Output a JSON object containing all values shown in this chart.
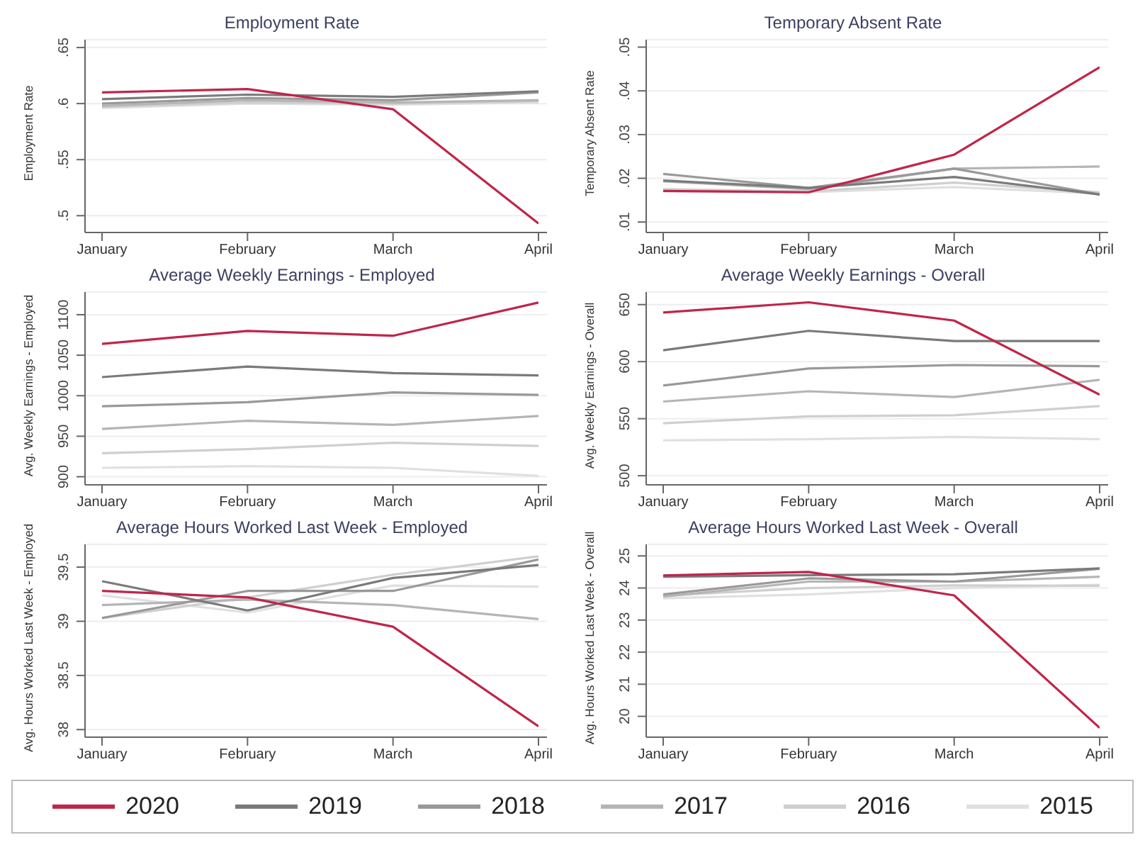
{
  "chart_data": [
    {
      "type": "line",
      "title": "Employment Rate",
      "ylabel": "Employment Rate",
      "categories": [
        "January",
        "February",
        "March",
        "April"
      ],
      "ylim": [
        0.485,
        0.657
      ],
      "yticks": [
        {
          "value": 0.5,
          "label": ".5"
        },
        {
          "value": 0.55,
          "label": ".55"
        },
        {
          "value": 0.6,
          "label": ".6"
        },
        {
          "value": 0.65,
          "label": ".65"
        }
      ],
      "grid": "y",
      "legend": "bottom",
      "series": [
        {
          "name": "2020",
          "color": "#c0254a",
          "values": [
            0.61,
            0.613,
            0.595,
            0.493
          ]
        },
        {
          "name": "2019",
          "color": "#7a7a7a",
          "values": [
            0.604,
            0.608,
            0.606,
            0.611
          ]
        },
        {
          "name": "2018",
          "color": "#999999",
          "values": [
            0.6,
            0.605,
            0.603,
            0.61
          ]
        },
        {
          "name": "2017",
          "color": "#b5b5b5",
          "values": [
            0.598,
            0.603,
            0.601,
            0.603
          ]
        },
        {
          "name": "2016",
          "color": "#cfcfcf",
          "values": [
            0.597,
            0.601,
            0.6,
            0.602
          ]
        },
        {
          "name": "2015",
          "color": "#e0e0e0",
          "values": [
            0.596,
            0.6,
            0.599,
            0.601
          ]
        }
      ]
    },
    {
      "type": "line",
      "title": "Temporary Absent Rate",
      "ylabel": "Temporary Absent Rate",
      "categories": [
        "January",
        "February",
        "March",
        "April"
      ],
      "ylim": [
        0.0076,
        0.0517
      ],
      "yticks": [
        {
          "value": 0.01,
          "label": ".01"
        },
        {
          "value": 0.02,
          "label": ".02"
        },
        {
          "value": 0.03,
          "label": ".03"
        },
        {
          "value": 0.04,
          "label": ".04"
        },
        {
          "value": 0.05,
          "label": ".05"
        }
      ],
      "grid": "y",
      "legend": "bottom",
      "series": [
        {
          "name": "2020",
          "color": "#c0254a",
          "values": [
            0.0171,
            0.0168,
            0.0254,
            0.0454
          ]
        },
        {
          "name": "2019",
          "color": "#7a7a7a",
          "values": [
            0.0195,
            0.0178,
            0.0203,
            0.0163
          ]
        },
        {
          "name": "2018",
          "color": "#999999",
          "values": [
            0.021,
            0.0178,
            0.0222,
            0.0163
          ]
        },
        {
          "name": "2017",
          "color": "#b5b5b5",
          "values": [
            0.0193,
            0.0175,
            0.0222,
            0.0227
          ]
        },
        {
          "name": "2016",
          "color": "#cfcfcf",
          "values": [
            0.0175,
            0.017,
            0.019,
            0.0168
          ]
        },
        {
          "name": "2015",
          "color": "#e0e0e0",
          "values": [
            0.017,
            0.0168,
            0.018,
            0.0165
          ]
        }
      ]
    },
    {
      "type": "line",
      "title": "Average Weekly Earnings - Employed",
      "ylabel": "Avg. Weekly Earnings - Employed",
      "categories": [
        "January",
        "February",
        "March",
        "April"
      ],
      "ylim": [
        890,
        1128
      ],
      "yticks": [
        900,
        950,
        1000,
        1050,
        1100
      ],
      "grid": "y",
      "legend": "bottom",
      "series": [
        {
          "name": "2020",
          "color": "#c0254a",
          "values": [
            1064,
            1080,
            1074,
            1115
          ]
        },
        {
          "name": "2019",
          "color": "#7a7a7a",
          "values": [
            1023,
            1036,
            1028,
            1025
          ]
        },
        {
          "name": "2018",
          "color": "#999999",
          "values": [
            987,
            992,
            1004,
            1001
          ]
        },
        {
          "name": "2017",
          "color": "#b5b5b5",
          "values": [
            959,
            969,
            964,
            975
          ]
        },
        {
          "name": "2016",
          "color": "#cfcfcf",
          "values": [
            929,
            934,
            942,
            938
          ]
        },
        {
          "name": "2015",
          "color": "#e0e0e0",
          "values": [
            911,
            913,
            911,
            901
          ]
        }
      ]
    },
    {
      "type": "line",
      "title": "Average Weekly Earnings - Overall",
      "ylabel": "Avg. Weekly Earnings - Overall",
      "categories": [
        "January",
        "February",
        "March",
        "April"
      ],
      "ylim": [
        492,
        661
      ],
      "yticks": [
        500,
        550,
        600,
        650
      ],
      "grid": "y",
      "legend": "bottom",
      "series": [
        {
          "name": "2020",
          "color": "#c0254a",
          "values": [
            643,
            652,
            636,
            571
          ]
        },
        {
          "name": "2019",
          "color": "#7a7a7a",
          "values": [
            610,
            627,
            618,
            618
          ]
        },
        {
          "name": "2018",
          "color": "#999999",
          "values": [
            579,
            594,
            597,
            596
          ]
        },
        {
          "name": "2017",
          "color": "#b5b5b5",
          "values": [
            565,
            574,
            569,
            584
          ]
        },
        {
          "name": "2016",
          "color": "#cfcfcf",
          "values": [
            546,
            552,
            553,
            561
          ]
        },
        {
          "name": "2015",
          "color": "#e0e0e0",
          "values": [
            531,
            532,
            534,
            532
          ]
        }
      ]
    },
    {
      "type": "line",
      "title": "Average Hours Worked Last Week -  Employed",
      "ylabel": "Avg. Hours Worked Last Week - Employed",
      "categories": [
        "January",
        "February",
        "March",
        "April"
      ],
      "ylim": [
        37.93,
        39.71
      ],
      "yticks": [
        38,
        38.5,
        39,
        39.5
      ],
      "grid": "y",
      "legend": "bottom",
      "series": [
        {
          "name": "2020",
          "color": "#c0254a",
          "values": [
            39.28,
            39.22,
            38.95,
            38.03
          ]
        },
        {
          "name": "2019",
          "color": "#7a7a7a",
          "values": [
            39.37,
            39.1,
            39.4,
            39.52
          ]
        },
        {
          "name": "2018",
          "color": "#999999",
          "values": [
            39.03,
            39.28,
            39.28,
            39.57
          ]
        },
        {
          "name": "2017",
          "color": "#b5b5b5",
          "values": [
            39.15,
            39.2,
            39.15,
            39.02
          ]
        },
        {
          "name": "2016",
          "color": "#cfcfcf",
          "values": [
            39.03,
            39.22,
            39.43,
            39.6
          ]
        },
        {
          "name": "2015",
          "color": "#e0e0e0",
          "values": [
            39.24,
            39.08,
            39.33,
            39.32
          ]
        }
      ]
    },
    {
      "type": "line",
      "title": "Average Hours Worked Last Week - Overall",
      "ylabel": "Avg. Hours Worked Last Week - Overall",
      "categories": [
        "January",
        "February",
        "March",
        "April"
      ],
      "ylim": [
        19.35,
        25.36
      ],
      "yticks": [
        20,
        21,
        22,
        23,
        24,
        25
      ],
      "grid": "y",
      "legend": "bottom",
      "series": [
        {
          "name": "2020",
          "color": "#c0254a",
          "values": [
            24.39,
            24.5,
            23.77,
            19.64
          ]
        },
        {
          "name": "2019",
          "color": "#7a7a7a",
          "values": [
            24.35,
            24.4,
            24.43,
            24.61
          ]
        },
        {
          "name": "2018",
          "color": "#999999",
          "values": [
            23.8,
            24.3,
            24.2,
            24.6
          ]
        },
        {
          "name": "2017",
          "color": "#b5b5b5",
          "values": [
            23.73,
            24.2,
            24.2,
            24.35
          ]
        },
        {
          "name": "2016",
          "color": "#cfcfcf",
          "values": [
            23.76,
            24.0,
            24.08,
            24.07
          ]
        },
        {
          "name": "2015",
          "color": "#e0e0e0",
          "values": [
            23.68,
            23.8,
            24.0,
            24.1
          ]
        }
      ]
    }
  ]
}
